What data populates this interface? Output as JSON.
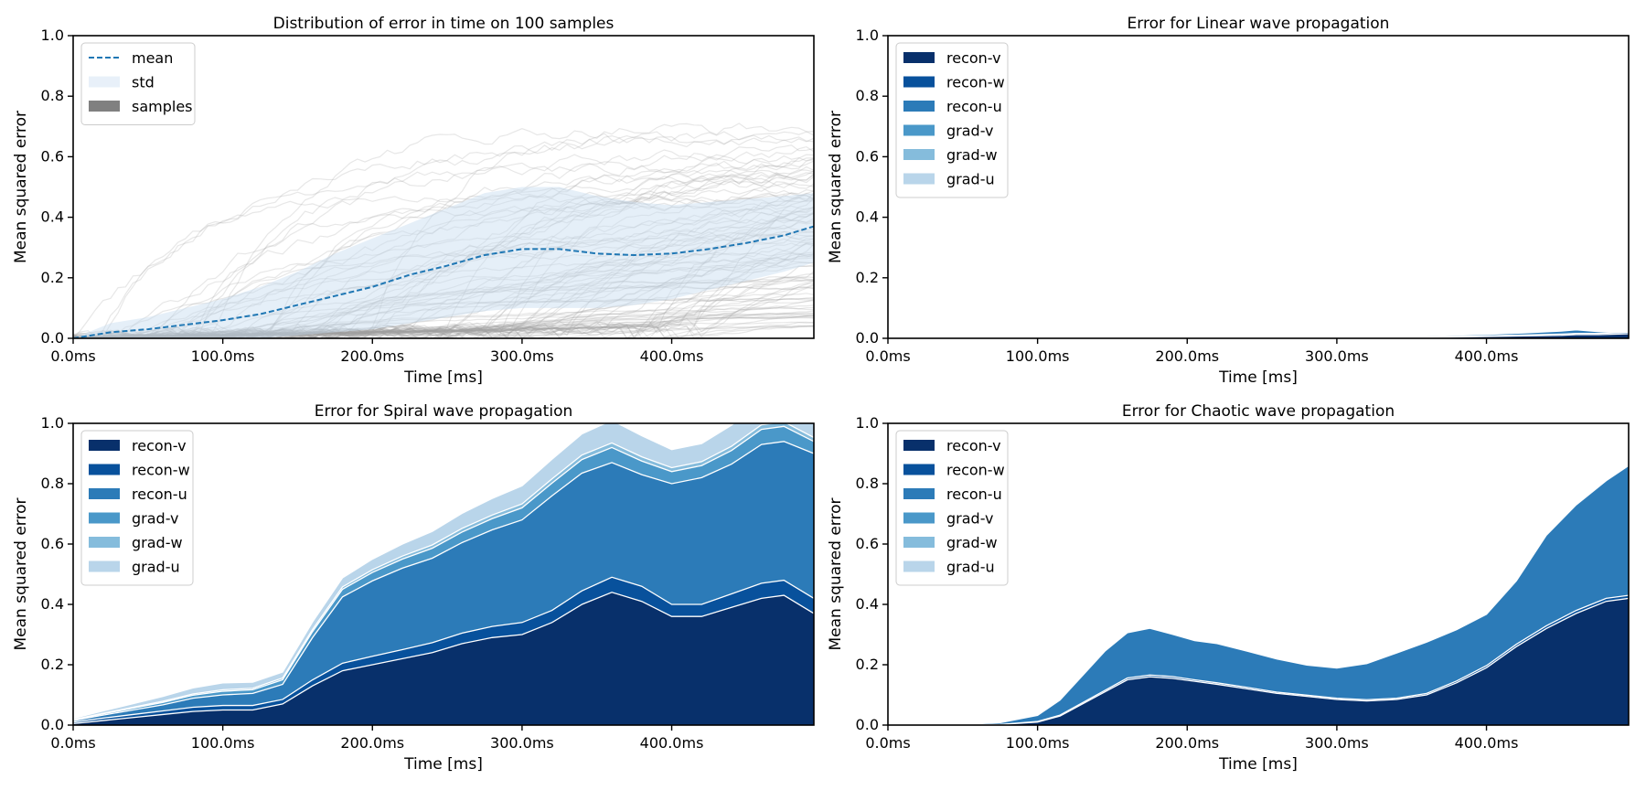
{
  "chart_data": [
    {
      "type": "line",
      "title": "Distribution of error in time on 100 samples",
      "xlabel": "Time [ms]",
      "ylabel": "Mean squared error",
      "xlim": [
        0,
        495
      ],
      "ylim": [
        0,
        1.0
      ],
      "x_ticks": [
        0,
        100,
        200,
        300,
        400
      ],
      "x_tick_labels": [
        "0.0ms",
        "100.0ms",
        "200.0ms",
        "300.0ms",
        "400.0ms"
      ],
      "y_ticks": [
        0,
        0.2,
        0.4,
        0.6,
        0.8,
        1.0
      ],
      "y_tick_labels": [
        "0.0",
        "0.2",
        "0.4",
        "0.6",
        "0.8",
        "1.0"
      ],
      "legend_position": "top-left",
      "legend": [
        {
          "label": "mean",
          "kind": "dashed-line",
          "color": "#1f77b4"
        },
        {
          "label": "std",
          "kind": "patch",
          "color": "#e8f0f9"
        },
        {
          "label": "samples",
          "kind": "patch",
          "color": "#808080"
        }
      ],
      "x": [
        0,
        25,
        50,
        75,
        100,
        125,
        150,
        175,
        200,
        225,
        250,
        275,
        300,
        325,
        350,
        375,
        400,
        425,
        450,
        475,
        495
      ],
      "mean": [
        0.0,
        0.02,
        0.03,
        0.045,
        0.06,
        0.08,
        0.11,
        0.14,
        0.17,
        0.21,
        0.24,
        0.275,
        0.295,
        0.295,
        0.28,
        0.275,
        0.28,
        0.295,
        0.315,
        0.34,
        0.37
      ],
      "std_upper": [
        0.0,
        0.05,
        0.07,
        0.1,
        0.13,
        0.17,
        0.22,
        0.28,
        0.33,
        0.38,
        0.43,
        0.48,
        0.5,
        0.5,
        0.47,
        0.45,
        0.44,
        0.45,
        0.46,
        0.47,
        0.48
      ],
      "std_lower": [
        0.0,
        0.0,
        0.0,
        0.0,
        0.0,
        0.0,
        0.01,
        0.02,
        0.03,
        0.05,
        0.07,
        0.09,
        0.1,
        0.1,
        0.1,
        0.11,
        0.13,
        0.16,
        0.19,
        0.22,
        0.25
      ],
      "samples_count": 100,
      "sample_color": "#9e9e9e"
    },
    {
      "type": "area",
      "stacked": true,
      "title": "Error for Linear wave propagation",
      "xlabel": "Time [ms]",
      "ylabel": "Mean squared error",
      "xlim": [
        0,
        495
      ],
      "ylim": [
        0,
        1.0
      ],
      "x_ticks": [
        0,
        100,
        200,
        300,
        400
      ],
      "x_tick_labels": [
        "0.0ms",
        "100.0ms",
        "200.0ms",
        "300.0ms",
        "400.0ms"
      ],
      "y_ticks": [
        0,
        0.2,
        0.4,
        0.6,
        0.8,
        1.0
      ],
      "y_tick_labels": [
        "0.0",
        "0.2",
        "0.4",
        "0.6",
        "0.8",
        "1.0"
      ],
      "legend_position": "top-left",
      "x": [
        0,
        50,
        100,
        150,
        200,
        225,
        250,
        275,
        300,
        325,
        350,
        375,
        400,
        425,
        450,
        460,
        475,
        495
      ],
      "series": [
        {
          "name": "recon-v",
          "color": "#08306b",
          "values": [
            0,
            0,
            0,
            0,
            0,
            0.0005,
            0.001,
            0.0005,
            0.001,
            0.002,
            0.003,
            0.004,
            0.006,
            0.008,
            0.01,
            0.012,
            0.012,
            0.015
          ]
        },
        {
          "name": "recon-w",
          "color": "#08519c",
          "values": [
            0,
            0,
            0,
            0,
            0,
            0.0002,
            0.0003,
            0.0002,
            0.0005,
            0.001,
            0.001,
            0.002,
            0.002,
            0.003,
            0.004,
            0.004,
            0.004,
            0.005
          ]
        },
        {
          "name": "recon-u",
          "color": "#2c7bb8",
          "values": [
            0,
            0,
            0,
            0,
            0,
            0.0005,
            0.001,
            0.0005,
            0.001,
            0.002,
            0.003,
            0.004,
            0.005,
            0.007,
            0.01,
            0.012,
            0.006,
            0.0
          ]
        },
        {
          "name": "grad-v",
          "color": "#4a98c9",
          "values": [
            0,
            0,
            0,
            0,
            0,
            0,
            0,
            0,
            0,
            0,
            0,
            0,
            0,
            0,
            0,
            0,
            0,
            0
          ]
        },
        {
          "name": "grad-w",
          "color": "#85bcdc",
          "values": [
            0,
            0,
            0,
            0,
            0,
            0,
            0,
            0,
            0,
            0,
            0,
            0,
            0,
            0,
            0,
            0,
            0,
            0
          ]
        },
        {
          "name": "grad-u",
          "color": "#b9d5ea",
          "values": [
            0,
            0,
            0,
            0,
            0,
            0,
            0,
            0,
            0,
            0,
            0,
            0,
            0,
            0,
            0,
            0,
            0,
            0
          ]
        }
      ]
    },
    {
      "type": "area",
      "stacked": true,
      "title": "Error for Spiral wave propagation",
      "xlabel": "Time [ms]",
      "ylabel": "Mean squared error",
      "xlim": [
        0,
        495
      ],
      "ylim": [
        0,
        1.0
      ],
      "x_ticks": [
        0,
        100,
        200,
        300,
        400
      ],
      "x_tick_labels": [
        "0.0ms",
        "100.0ms",
        "200.0ms",
        "300.0ms",
        "400.0ms"
      ],
      "y_ticks": [
        0,
        0.2,
        0.4,
        0.6,
        0.8,
        1.0
      ],
      "y_tick_labels": [
        "0.0",
        "0.2",
        "0.4",
        "0.6",
        "0.8",
        "1.0"
      ],
      "legend_position": "top-left",
      "x": [
        0,
        20,
        40,
        60,
        80,
        100,
        120,
        140,
        160,
        180,
        200,
        220,
        240,
        260,
        280,
        300,
        320,
        340,
        360,
        380,
        400,
        420,
        440,
        460,
        475,
        495
      ],
      "series": [
        {
          "name": "recon-v",
          "color": "#08306b",
          "values": [
            0.005,
            0.015,
            0.025,
            0.035,
            0.045,
            0.05,
            0.05,
            0.07,
            0.13,
            0.18,
            0.2,
            0.22,
            0.24,
            0.27,
            0.29,
            0.3,
            0.34,
            0.4,
            0.44,
            0.41,
            0.36,
            0.36,
            0.39,
            0.42,
            0.43,
            0.37
          ]
        },
        {
          "name": "recon-w",
          "color": "#08519c",
          "values": [
            0.005,
            0.008,
            0.01,
            0.012,
            0.014,
            0.015,
            0.015,
            0.015,
            0.02,
            0.025,
            0.028,
            0.03,
            0.033,
            0.035,
            0.037,
            0.04,
            0.04,
            0.045,
            0.05,
            0.05,
            0.04,
            0.04,
            0.045,
            0.05,
            0.05,
            0.05
          ]
        },
        {
          "name": "recon-u",
          "color": "#2c7bb8",
          "values": [
            0.005,
            0.01,
            0.015,
            0.02,
            0.03,
            0.035,
            0.04,
            0.05,
            0.14,
            0.22,
            0.25,
            0.27,
            0.28,
            0.3,
            0.32,
            0.34,
            0.38,
            0.39,
            0.38,
            0.37,
            0.4,
            0.42,
            0.43,
            0.46,
            0.46,
            0.48
          ]
        },
        {
          "name": "grad-v",
          "color": "#4a98c9",
          "values": [
            0.002,
            0.004,
            0.006,
            0.008,
            0.01,
            0.012,
            0.012,
            0.015,
            0.02,
            0.025,
            0.028,
            0.03,
            0.033,
            0.035,
            0.037,
            0.04,
            0.042,
            0.045,
            0.05,
            0.045,
            0.04,
            0.04,
            0.045,
            0.05,
            0.05,
            0.04
          ]
        },
        {
          "name": "grad-w",
          "color": "#85bcdc",
          "values": [
            0.001,
            0.002,
            0.003,
            0.004,
            0.004,
            0.005,
            0.005,
            0.006,
            0.007,
            0.008,
            0.009,
            0.01,
            0.011,
            0.012,
            0.012,
            0.013,
            0.014,
            0.015,
            0.015,
            0.014,
            0.013,
            0.013,
            0.014,
            0.015,
            0.015,
            0.013
          ]
        },
        {
          "name": "grad-u",
          "color": "#b9d5ea",
          "values": [
            0.004,
            0.008,
            0.012,
            0.016,
            0.02,
            0.023,
            0.02,
            0.02,
            0.025,
            0.03,
            0.035,
            0.04,
            0.045,
            0.05,
            0.055,
            0.06,
            0.065,
            0.07,
            0.075,
            0.07,
            0.06,
            0.06,
            0.07,
            0.08,
            0.08,
            0.07
          ]
        }
      ]
    },
    {
      "type": "area",
      "stacked": true,
      "title": "Error for Chaotic wave propagation",
      "xlabel": "Time [ms]",
      "ylabel": "Mean squared error",
      "xlim": [
        0,
        495
      ],
      "ylim": [
        0,
        1.0
      ],
      "x_ticks": [
        0,
        100,
        200,
        300,
        400
      ],
      "x_tick_labels": [
        "0.0ms",
        "100.0ms",
        "200.0ms",
        "300.0ms",
        "400.0ms"
      ],
      "y_ticks": [
        0,
        0.2,
        0.4,
        0.6,
        0.8,
        1.0
      ],
      "y_tick_labels": [
        "0.0",
        "0.2",
        "0.4",
        "0.6",
        "0.8",
        "1.0"
      ],
      "legend_position": "top-left",
      "x": [
        0,
        25,
        50,
        75,
        100,
        115,
        130,
        145,
        160,
        175,
        190,
        205,
        220,
        240,
        260,
        280,
        300,
        320,
        340,
        360,
        380,
        400,
        420,
        440,
        460,
        480,
        495
      ],
      "series": [
        {
          "name": "recon-v",
          "color": "#08306b",
          "values": [
            0,
            0,
            0,
            0.002,
            0.01,
            0.03,
            0.07,
            0.11,
            0.15,
            0.16,
            0.155,
            0.145,
            0.135,
            0.12,
            0.105,
            0.095,
            0.085,
            0.08,
            0.085,
            0.1,
            0.14,
            0.19,
            0.26,
            0.32,
            0.37,
            0.41,
            0.42
          ]
        },
        {
          "name": "recon-w",
          "color": "#08519c",
          "values": [
            0,
            0,
            0,
            0,
            0.002,
            0.003,
            0.004,
            0.005,
            0.006,
            0.006,
            0.006,
            0.005,
            0.005,
            0.005,
            0.004,
            0.004,
            0.004,
            0.004,
            0.004,
            0.005,
            0.006,
            0.007,
            0.008,
            0.009,
            0.01,
            0.01,
            0.01
          ]
        },
        {
          "name": "recon-u",
          "color": "#2c7bb8",
          "values": [
            0,
            0,
            0.002,
            0.006,
            0.02,
            0.05,
            0.09,
            0.13,
            0.15,
            0.155,
            0.14,
            0.13,
            0.13,
            0.12,
            0.11,
            0.1,
            0.1,
            0.12,
            0.15,
            0.17,
            0.17,
            0.17,
            0.21,
            0.3,
            0.35,
            0.39,
            0.43
          ]
        },
        {
          "name": "grad-v",
          "color": "#4a98c9",
          "values": [
            0,
            0,
            0,
            0,
            0,
            0,
            0,
            0,
            0,
            0,
            0,
            0,
            0,
            0,
            0,
            0,
            0,
            0,
            0,
            0,
            0,
            0,
            0,
            0,
            0,
            0,
            0
          ]
        },
        {
          "name": "grad-w",
          "color": "#85bcdc",
          "values": [
            0,
            0,
            0,
            0,
            0,
            0,
            0,
            0,
            0,
            0,
            0,
            0,
            0,
            0,
            0,
            0,
            0,
            0,
            0,
            0,
            0,
            0,
            0,
            0,
            0,
            0,
            0
          ]
        },
        {
          "name": "grad-u",
          "color": "#b9d5ea",
          "values": [
            0,
            0,
            0,
            0,
            0,
            0,
            0,
            0,
            0,
            0,
            0,
            0,
            0,
            0,
            0,
            0,
            0,
            0,
            0,
            0,
            0,
            0,
            0,
            0,
            0,
            0,
            0
          ]
        }
      ]
    }
  ]
}
